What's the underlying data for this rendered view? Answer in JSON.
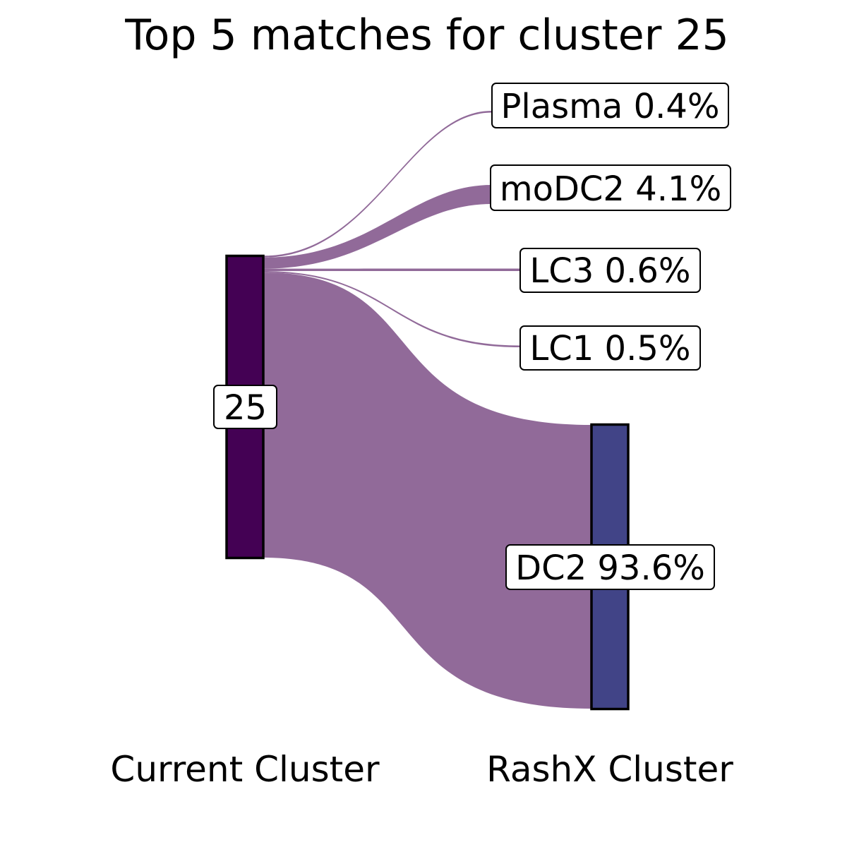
{
  "title": "Top 5 matches for cluster 25",
  "axis_labels": {
    "left": "Current Cluster",
    "right": "RashX Cluster"
  },
  "colors": {
    "source_node": "#440154",
    "target_node": "#414487",
    "flow": "#916a99"
  },
  "source": {
    "label": "25"
  },
  "targets": [
    {
      "label": "Plasma 0.4%",
      "name": "Plasma",
      "percent": 0.4
    },
    {
      "label": "moDC2 4.1%",
      "name": "moDC2",
      "percent": 4.1
    },
    {
      "label": "LC3 0.6%",
      "name": "LC3",
      "percent": 0.6
    },
    {
      "label": "LC1 0.5%",
      "name": "LC1",
      "percent": 0.5
    },
    {
      "label": "DC2 93.6%",
      "name": "DC2",
      "percent": 93.6
    }
  ]
}
